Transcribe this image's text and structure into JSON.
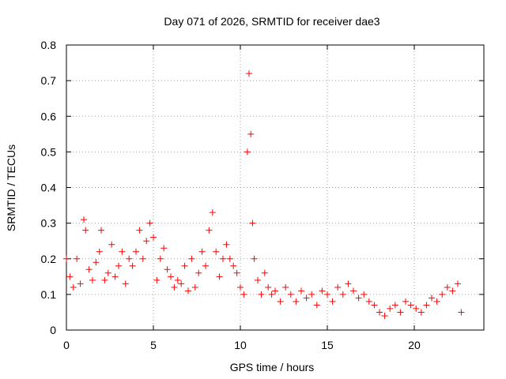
{
  "chart_data": {
    "type": "scatter",
    "title": "Day 071 of 2026, SRMTID for receiver dae3",
    "xlabel": "GPS time / hours",
    "ylabel": "SRMTID / TECUs",
    "xlim": [
      0,
      24
    ],
    "ylim": [
      0,
      0.8
    ],
    "xticks": [
      0,
      5,
      10,
      15,
      20
    ],
    "xtick_labels": [
      "0",
      "5",
      "10",
      "15",
      "20"
    ],
    "yticks": [
      0,
      0.1,
      0.2,
      0.3,
      0.4,
      0.5,
      0.6,
      0.7,
      0.8
    ],
    "ytick_labels": [
      "0",
      "0.1",
      "0.2",
      "0.3",
      "0.4",
      "0.5",
      "0.6",
      "0.7",
      "0.8"
    ],
    "grid": true,
    "legend": "none",
    "marker": "plus",
    "series": [
      {
        "name": "SRMTID",
        "color": "#ff0000",
        "x": [
          0.0,
          0.2,
          0.4,
          0.6,
          0.8,
          1.0,
          1.1,
          1.3,
          1.5,
          1.7,
          1.9,
          2.0,
          2.2,
          2.4,
          2.6,
          2.8,
          3.0,
          3.2,
          3.4,
          3.6,
          3.8,
          4.0,
          4.2,
          4.4,
          4.6,
          4.8,
          5.0,
          5.2,
          5.4,
          5.6,
          5.8,
          6.0,
          6.2,
          6.4,
          6.6,
          6.8,
          7.0,
          7.2,
          7.4,
          7.6,
          7.8,
          8.0,
          8.2,
          8.4,
          8.6,
          8.8,
          9.0,
          9.2,
          9.4,
          9.6,
          9.8,
          10.0,
          10.2,
          10.4,
          10.5,
          10.6,
          10.7,
          10.8,
          11.0,
          11.2,
          11.4,
          11.6,
          11.8,
          12.0,
          12.3,
          12.6,
          12.9,
          13.2,
          13.5,
          13.8,
          14.1,
          14.4,
          14.7,
          15.0,
          15.3,
          15.6,
          15.9,
          16.2,
          16.5,
          16.8,
          17.1,
          17.4,
          17.7,
          18.0,
          18.3,
          18.6,
          18.9,
          19.2,
          19.5,
          19.8,
          20.1,
          20.4,
          20.7,
          21.0,
          21.3,
          21.6,
          21.9,
          22.2,
          22.5,
          22.7
        ],
        "y": [
          0.2,
          0.15,
          0.12,
          0.2,
          0.13,
          0.31,
          0.28,
          0.17,
          0.14,
          0.19,
          0.22,
          0.28,
          0.14,
          0.16,
          0.24,
          0.15,
          0.18,
          0.22,
          0.13,
          0.2,
          0.18,
          0.22,
          0.28,
          0.2,
          0.25,
          0.3,
          0.26,
          0.14,
          0.2,
          0.23,
          0.17,
          0.15,
          0.12,
          0.14,
          0.13,
          0.18,
          0.11,
          0.2,
          0.12,
          0.16,
          0.22,
          0.18,
          0.28,
          0.33,
          0.22,
          0.15,
          0.2,
          0.24,
          0.2,
          0.18,
          0.16,
          0.12,
          0.1,
          0.5,
          0.72,
          0.55,
          0.3,
          0.2,
          0.14,
          0.1,
          0.16,
          0.12,
          0.1,
          0.11,
          0.08,
          0.12,
          0.1,
          0.08,
          0.11,
          0.09,
          0.1,
          0.07,
          0.11,
          0.1,
          0.08,
          0.12,
          0.1,
          0.13,
          0.11,
          0.09,
          0.1,
          0.08,
          0.07,
          0.05,
          0.04,
          0.06,
          0.07,
          0.05,
          0.08,
          0.07,
          0.06,
          0.05,
          0.07,
          0.09,
          0.08,
          0.1,
          0.12,
          0.11,
          0.13,
          0.05
        ]
      }
    ]
  }
}
